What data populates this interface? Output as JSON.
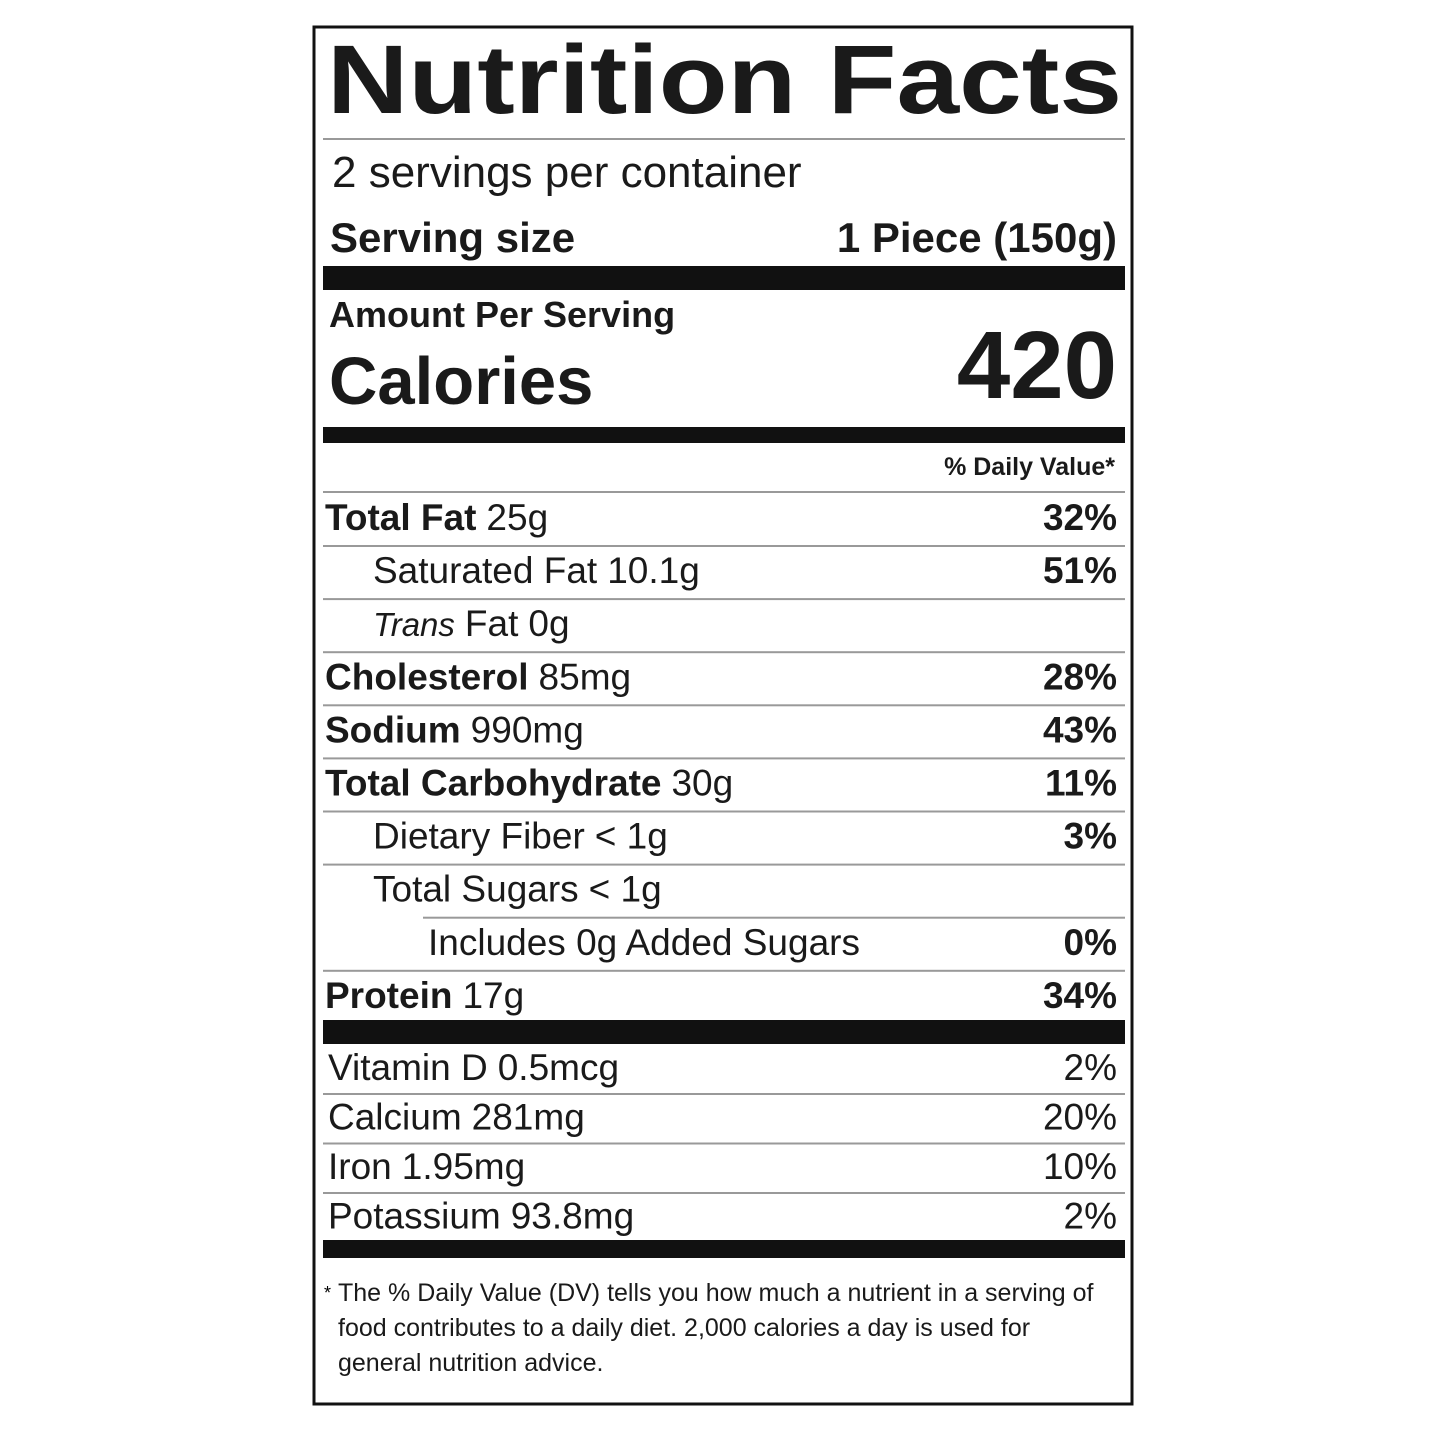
{
  "title": "Nutrition Facts",
  "servings": "2 servings per container",
  "serving_size": {
    "label": "Serving size",
    "value": "1 Piece (150g)"
  },
  "amount_per_serving": "Amount Per Serving",
  "calories": {
    "label": "Calories",
    "value": "420"
  },
  "dv_header": "% Daily Value*",
  "nutrients": [
    {
      "name": "Total Fat",
      "amount": "25g",
      "dv": "32%",
      "bold": true,
      "indent": 0
    },
    {
      "name": "Saturated Fat",
      "amount": "10.1g",
      "dv": "51%",
      "bold": false,
      "indent": 1
    },
    {
      "prefix": "Trans",
      "name": "Fat",
      "amount": "0g",
      "bold": false,
      "indent": 1
    },
    {
      "name": "Cholesterol",
      "amount": "85mg",
      "dv": "28%",
      "bold": true,
      "indent": 0
    },
    {
      "name": "Sodium",
      "amount": "990mg",
      "dv": "43%",
      "bold": true,
      "indent": 0
    },
    {
      "name": "Total Carbohydrate",
      "amount": "30g",
      "dv": "11%",
      "bold": true,
      "indent": 0
    },
    {
      "name": "Dietary Fiber",
      "amount": "< 1g",
      "dv": "3%",
      "bold": false,
      "indent": 1
    },
    {
      "name": "Total Sugars",
      "amount": "< 1g",
      "bold": false,
      "indent": 1
    },
    {
      "name": "Includes 0g Added Sugars",
      "dv": "0%",
      "bold": false,
      "indent": 2
    },
    {
      "name": "Protein",
      "amount": "17g",
      "dv": "34%",
      "bold": true,
      "indent": 0
    }
  ],
  "vitamins": [
    {
      "name": "Vitamin D",
      "amount": "0.5mcg",
      "dv": "2%"
    },
    {
      "name": "Calcium",
      "amount": "281mg",
      "dv": "20%"
    },
    {
      "name": "Iron",
      "amount": "1.95mg",
      "dv": "10%"
    },
    {
      "name": "Potassium",
      "amount": "93.8mg",
      "dv": "2%"
    }
  ],
  "footnote": {
    "mark": "*",
    "text": "The % Daily Value (DV) tells you how much a nutrient in a serving of food contributes to a daily diet. 2,000 calories a day is used for general nutrition advice."
  }
}
